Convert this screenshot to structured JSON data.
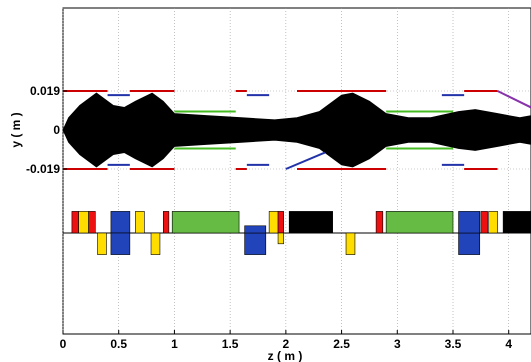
{
  "chart_data": {
    "type": "line",
    "title": "",
    "xlabel": "z ( m )",
    "ylabel": "y ( m )",
    "xlim": [
      0,
      4.2
    ],
    "grid": true,
    "x_ticks": [
      0,
      0.5,
      1,
      1.5,
      2,
      2.5,
      3,
      3.5,
      4
    ],
    "x_tick_labels": [
      "0",
      "0.5",
      "1",
      "1.5",
      "2",
      "2.5",
      "3",
      "3.5",
      "4"
    ],
    "y_ticks": [
      0.019,
      0,
      -0.019
    ],
    "y_tick_labels": [
      "0.019",
      "0",
      "-0.019"
    ],
    "beam_envelope": {
      "description_color": "#000000",
      "z": [
        0,
        0.05,
        0.15,
        0.3,
        0.45,
        0.55,
        0.65,
        0.8,
        0.9,
        1.0,
        1.3,
        1.6,
        1.9,
        2.1,
        2.3,
        2.5,
        2.6,
        2.75,
        2.9,
        3.1,
        3.3,
        3.55,
        3.7,
        3.9,
        4.1,
        4.2
      ],
      "half_width": [
        0.0,
        0.006,
        0.012,
        0.018,
        0.012,
        0.011,
        0.014,
        0.018,
        0.014,
        0.008,
        0.007,
        0.006,
        0.005,
        0.006,
        0.009,
        0.017,
        0.018,
        0.014,
        0.008,
        0.006,
        0.006,
        0.009,
        0.01,
        0.008,
        0.006,
        0.007
      ]
    },
    "aperture_lines": [
      {
        "color": "#cc0000",
        "z0": 0.0,
        "z1": 0.4,
        "y": 0.019
      },
      {
        "color": "#cc0000",
        "z0": 0.6,
        "z1": 1.0,
        "y": 0.019
      },
      {
        "color": "#cc0000",
        "z0": 1.55,
        "z1": 1.65,
        "y": 0.019
      },
      {
        "color": "#cc0000",
        "z0": 2.1,
        "z1": 2.9,
        "y": 0.019
      },
      {
        "color": "#cc0000",
        "z0": 3.6,
        "z1": 3.9,
        "y": 0.019
      },
      {
        "color": "#cc0000",
        "z0": 0.0,
        "z1": 0.4,
        "y": -0.019
      },
      {
        "color": "#cc0000",
        "z0": 0.6,
        "z1": 1.0,
        "y": -0.019
      },
      {
        "color": "#cc0000",
        "z0": 1.55,
        "z1": 1.65,
        "y": -0.019
      },
      {
        "color": "#cc0000",
        "z0": 2.1,
        "z1": 2.9,
        "y": -0.019
      },
      {
        "color": "#cc0000",
        "z0": 3.6,
        "z1": 3.9,
        "y": -0.019
      },
      {
        "color": "#2233aa",
        "z0": 0.4,
        "z1": 0.6,
        "y": 0.017
      },
      {
        "color": "#2233aa",
        "z0": 0.4,
        "z1": 0.6,
        "y": -0.017
      },
      {
        "color": "#2233aa",
        "z0": 1.65,
        "z1": 1.85,
        "y": 0.017
      },
      {
        "color": "#2233aa",
        "z0": 1.65,
        "z1": 1.85,
        "y": -0.017
      },
      {
        "color": "#2233aa",
        "z0": 3.4,
        "z1": 3.6,
        "y": 0.017
      },
      {
        "color": "#2233aa",
        "z0": 3.4,
        "z1": 3.6,
        "y": -0.017
      },
      {
        "color": "#44bb22",
        "z0": 1.0,
        "z1": 1.55,
        "y": 0.009
      },
      {
        "color": "#44bb22",
        "z0": 1.0,
        "z1": 1.55,
        "y": -0.009
      },
      {
        "color": "#44bb22",
        "z0": 2.9,
        "z1": 3.5,
        "y": 0.009
      },
      {
        "color": "#44bb22",
        "z0": 2.9,
        "z1": 3.5,
        "y": -0.009
      },
      {
        "color": "#2233aa",
        "z0": 2.0,
        "z1": 2.35,
        "y0": -0.019,
        "y1": -0.011
      },
      {
        "color": "#8833aa",
        "z0": 3.9,
        "z1": 4.2,
        "y0": 0.019,
        "y1": 0.011
      }
    ],
    "elements": [
      {
        "color": "#ee1111",
        "z0": 0.08,
        "z1": 0.14,
        "side": "up",
        "height": 0.6
      },
      {
        "color": "#ffdd00",
        "z0": 0.14,
        "z1": 0.23,
        "side": "up",
        "height": 0.6
      },
      {
        "color": "#ee1111",
        "z0": 0.23,
        "z1": 0.29,
        "side": "up",
        "height": 0.6
      },
      {
        "color": "#ffdd00",
        "z0": 0.31,
        "z1": 0.39,
        "side": "down",
        "height": 0.6
      },
      {
        "color": "#2244bb",
        "z0": 0.43,
        "z1": 0.6,
        "side": "up",
        "height": 0.6
      },
      {
        "color": "#2244bb",
        "z0": 0.43,
        "z1": 0.6,
        "side": "down",
        "height": 0.6
      },
      {
        "color": "#ffdd00",
        "z0": 0.65,
        "z1": 0.73,
        "side": "up",
        "height": 0.6
      },
      {
        "color": "#ffdd00",
        "z0": 0.79,
        "z1": 0.87,
        "side": "down",
        "height": 0.6
      },
      {
        "color": "#ee1111",
        "z0": 0.9,
        "z1": 0.95,
        "side": "up",
        "height": 0.6
      },
      {
        "color": "#66bb44",
        "z0": 0.98,
        "z1": 1.58,
        "side": "up",
        "height": 0.6
      },
      {
        "color": "#2244bb",
        "z0": 1.63,
        "z1": 1.82,
        "side": "down",
        "height": 0.6
      },
      {
        "color": "#2244bb",
        "z0": 1.63,
        "z1": 1.82,
        "side": "up",
        "height": 0.2
      },
      {
        "color": "#ffdd00",
        "z0": 1.85,
        "z1": 1.93,
        "side": "up",
        "height": 0.6
      },
      {
        "color": "#ee1111",
        "z0": 1.93,
        "z1": 1.98,
        "side": "up",
        "height": 0.6
      },
      {
        "color": "#ffdd00",
        "z0": 1.93,
        "z1": 1.98,
        "side": "down",
        "height": 0.3
      },
      {
        "color": "#000000",
        "z0": 2.03,
        "z1": 2.42,
        "side": "up",
        "height": 0.6
      },
      {
        "color": "#ffdd00",
        "z0": 2.54,
        "z1": 2.62,
        "side": "down",
        "height": 0.6
      },
      {
        "color": "#ee1111",
        "z0": 2.81,
        "z1": 2.87,
        "side": "up",
        "height": 0.6
      },
      {
        "color": "#66bb44",
        "z0": 2.9,
        "z1": 3.5,
        "side": "up",
        "height": 0.6
      },
      {
        "color": "#2244bb",
        "z0": 3.55,
        "z1": 3.74,
        "side": "down",
        "height": 0.6
      },
      {
        "color": "#2244bb",
        "z0": 3.55,
        "z1": 3.74,
        "side": "up",
        "height": 0.6
      },
      {
        "color": "#ee1111",
        "z0": 3.75,
        "z1": 3.81,
        "side": "up",
        "height": 0.6
      },
      {
        "color": "#ffdd00",
        "z0": 3.82,
        "z1": 3.9,
        "side": "up",
        "height": 0.6
      },
      {
        "color": "#000000",
        "z0": 3.95,
        "z1": 4.2,
        "side": "up",
        "height": 0.6
      }
    ]
  }
}
